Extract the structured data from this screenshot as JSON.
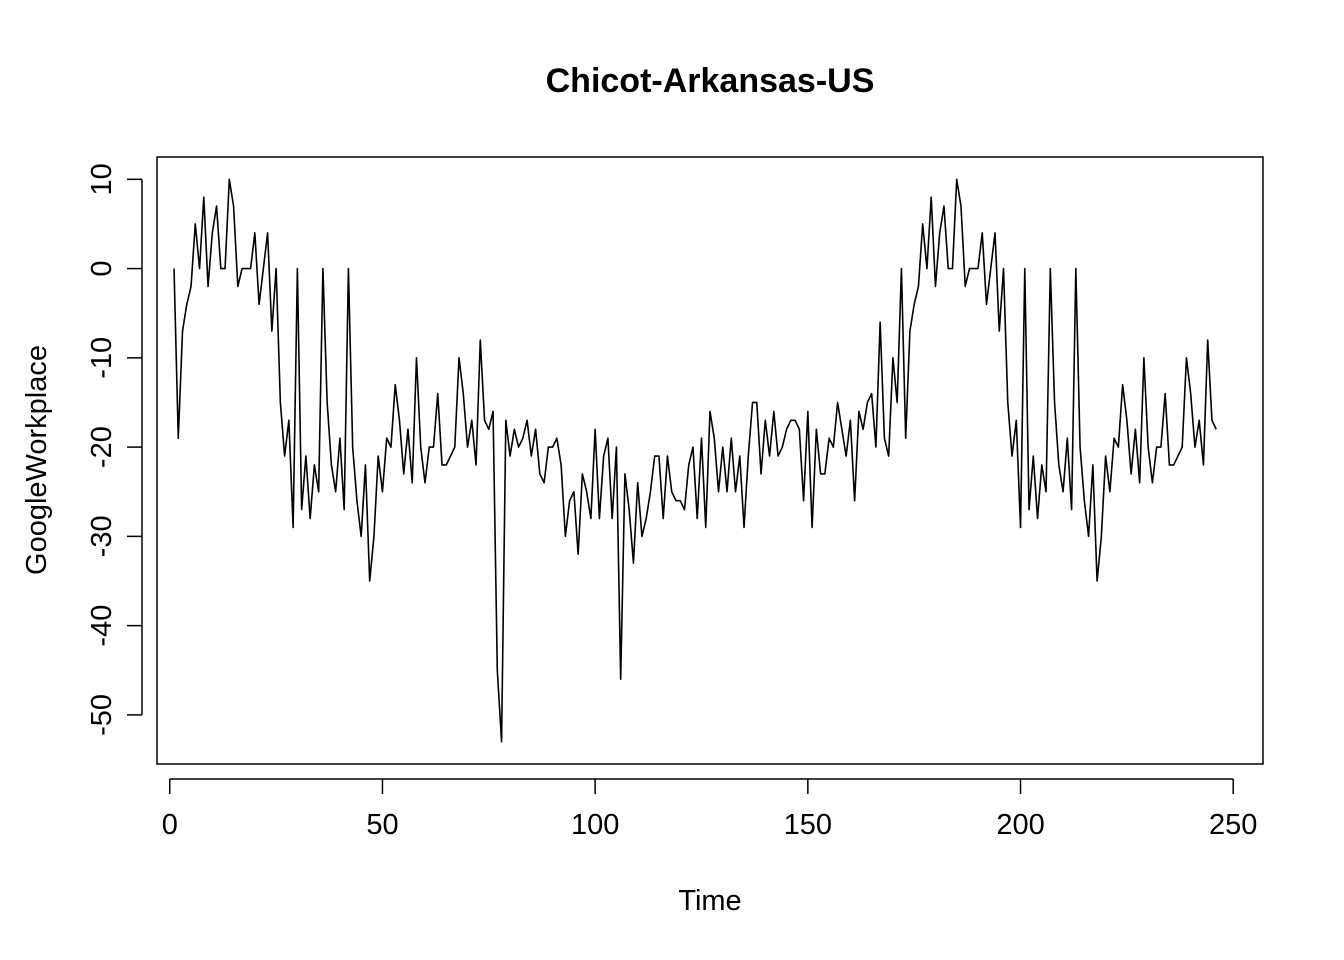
{
  "chart_data": {
    "type": "line",
    "title": "Chicot-Arkansas-US",
    "xlabel": "Time",
    "ylabel": "GoogleWorkplace",
    "xlim": [
      -3,
      257
    ],
    "ylim": [
      -55.5,
      12.5
    ],
    "xticks": [
      0,
      50,
      100,
      150,
      200,
      250
    ],
    "yticks": [
      10,
      0,
      -10,
      -20,
      -30,
      -40,
      -50
    ],
    "xtick_labels": [
      "0",
      "50",
      "100",
      "150",
      "200",
      "250"
    ],
    "ytick_labels": [
      "10",
      "0",
      "-10",
      "-20",
      "-30",
      "-40",
      "-50"
    ],
    "grid": false,
    "series": [
      {
        "color": "#000000",
        "x_start": 1,
        "values": [
          0,
          -19,
          -7,
          -4,
          -2,
          5,
          0,
          8,
          -2,
          4,
          7,
          0,
          0,
          10,
          7,
          -2,
          0,
          0,
          0,
          4,
          -4,
          0,
          4,
          -7,
          0,
          -15,
          -21,
          -17,
          -29,
          0,
          -27,
          -21,
          -28,
          -22,
          -25,
          0,
          -15,
          -22,
          -25,
          -19,
          -27,
          0,
          -20,
          -26,
          -30,
          -22,
          -35,
          -30,
          -21,
          -25,
          -19,
          -20,
          -13,
          -17,
          -23,
          -18,
          -24,
          -10,
          -20,
          -24,
          -20,
          -20,
          -14,
          -22,
          -22,
          -21,
          -20,
          -10,
          -14,
          -20,
          -17,
          -22,
          -8,
          -17,
          -18,
          -16,
          -45,
          -53,
          -17,
          -21,
          -18,
          -20,
          -19,
          -17,
          -21,
          -18,
          -23,
          -24,
          -20,
          -20,
          -19,
          -22,
          -30,
          -26,
          -25,
          -32,
          -23,
          -25,
          -28,
          -18,
          -28,
          -21,
          -19,
          -28,
          -20,
          -46,
          -23,
          -27,
          -33,
          -24,
          -30,
          -28,
          -25,
          -21,
          -21,
          -28,
          -21,
          -25,
          -26,
          -26,
          -27,
          -22,
          -20,
          -28,
          -19,
          -29,
          -16,
          -19,
          -25,
          -20,
          -25,
          -19,
          -25,
          -21,
          -29,
          -21,
          -15,
          -15,
          -23,
          -17,
          -21,
          -16,
          -21,
          -20,
          -18,
          -17,
          -17,
          -18,
          -26,
          -16,
          -29,
          -18,
          -23,
          -23,
          -19,
          -20,
          -15,
          -18,
          -21,
          -17,
          -26,
          -16,
          -18,
          -15,
          -14,
          -20,
          -6,
          -19,
          -21,
          -10,
          -15,
          0,
          -19,
          -7,
          -4,
          -2,
          5,
          0,
          8,
          -2,
          4,
          7,
          0,
          0,
          10,
          7,
          -2,
          0,
          0,
          0,
          4,
          -4,
          0,
          4,
          -7,
          0,
          -15,
          -21,
          -17,
          -29,
          0,
          -27,
          -21,
          -28,
          -22,
          -25,
          0,
          -15,
          -22,
          -25,
          -19,
          -27,
          0,
          -20,
          -26,
          -30,
          -22,
          -35,
          -30,
          -21,
          -25,
          -19,
          -20,
          -13,
          -17,
          -23,
          -18,
          -24,
          -10,
          -20,
          -24,
          -20,
          -20,
          -14,
          -22,
          -22,
          -21,
          -20,
          -10,
          -14,
          -20,
          -17,
          -22,
          -8,
          -17,
          -18
        ]
      }
    ]
  }
}
